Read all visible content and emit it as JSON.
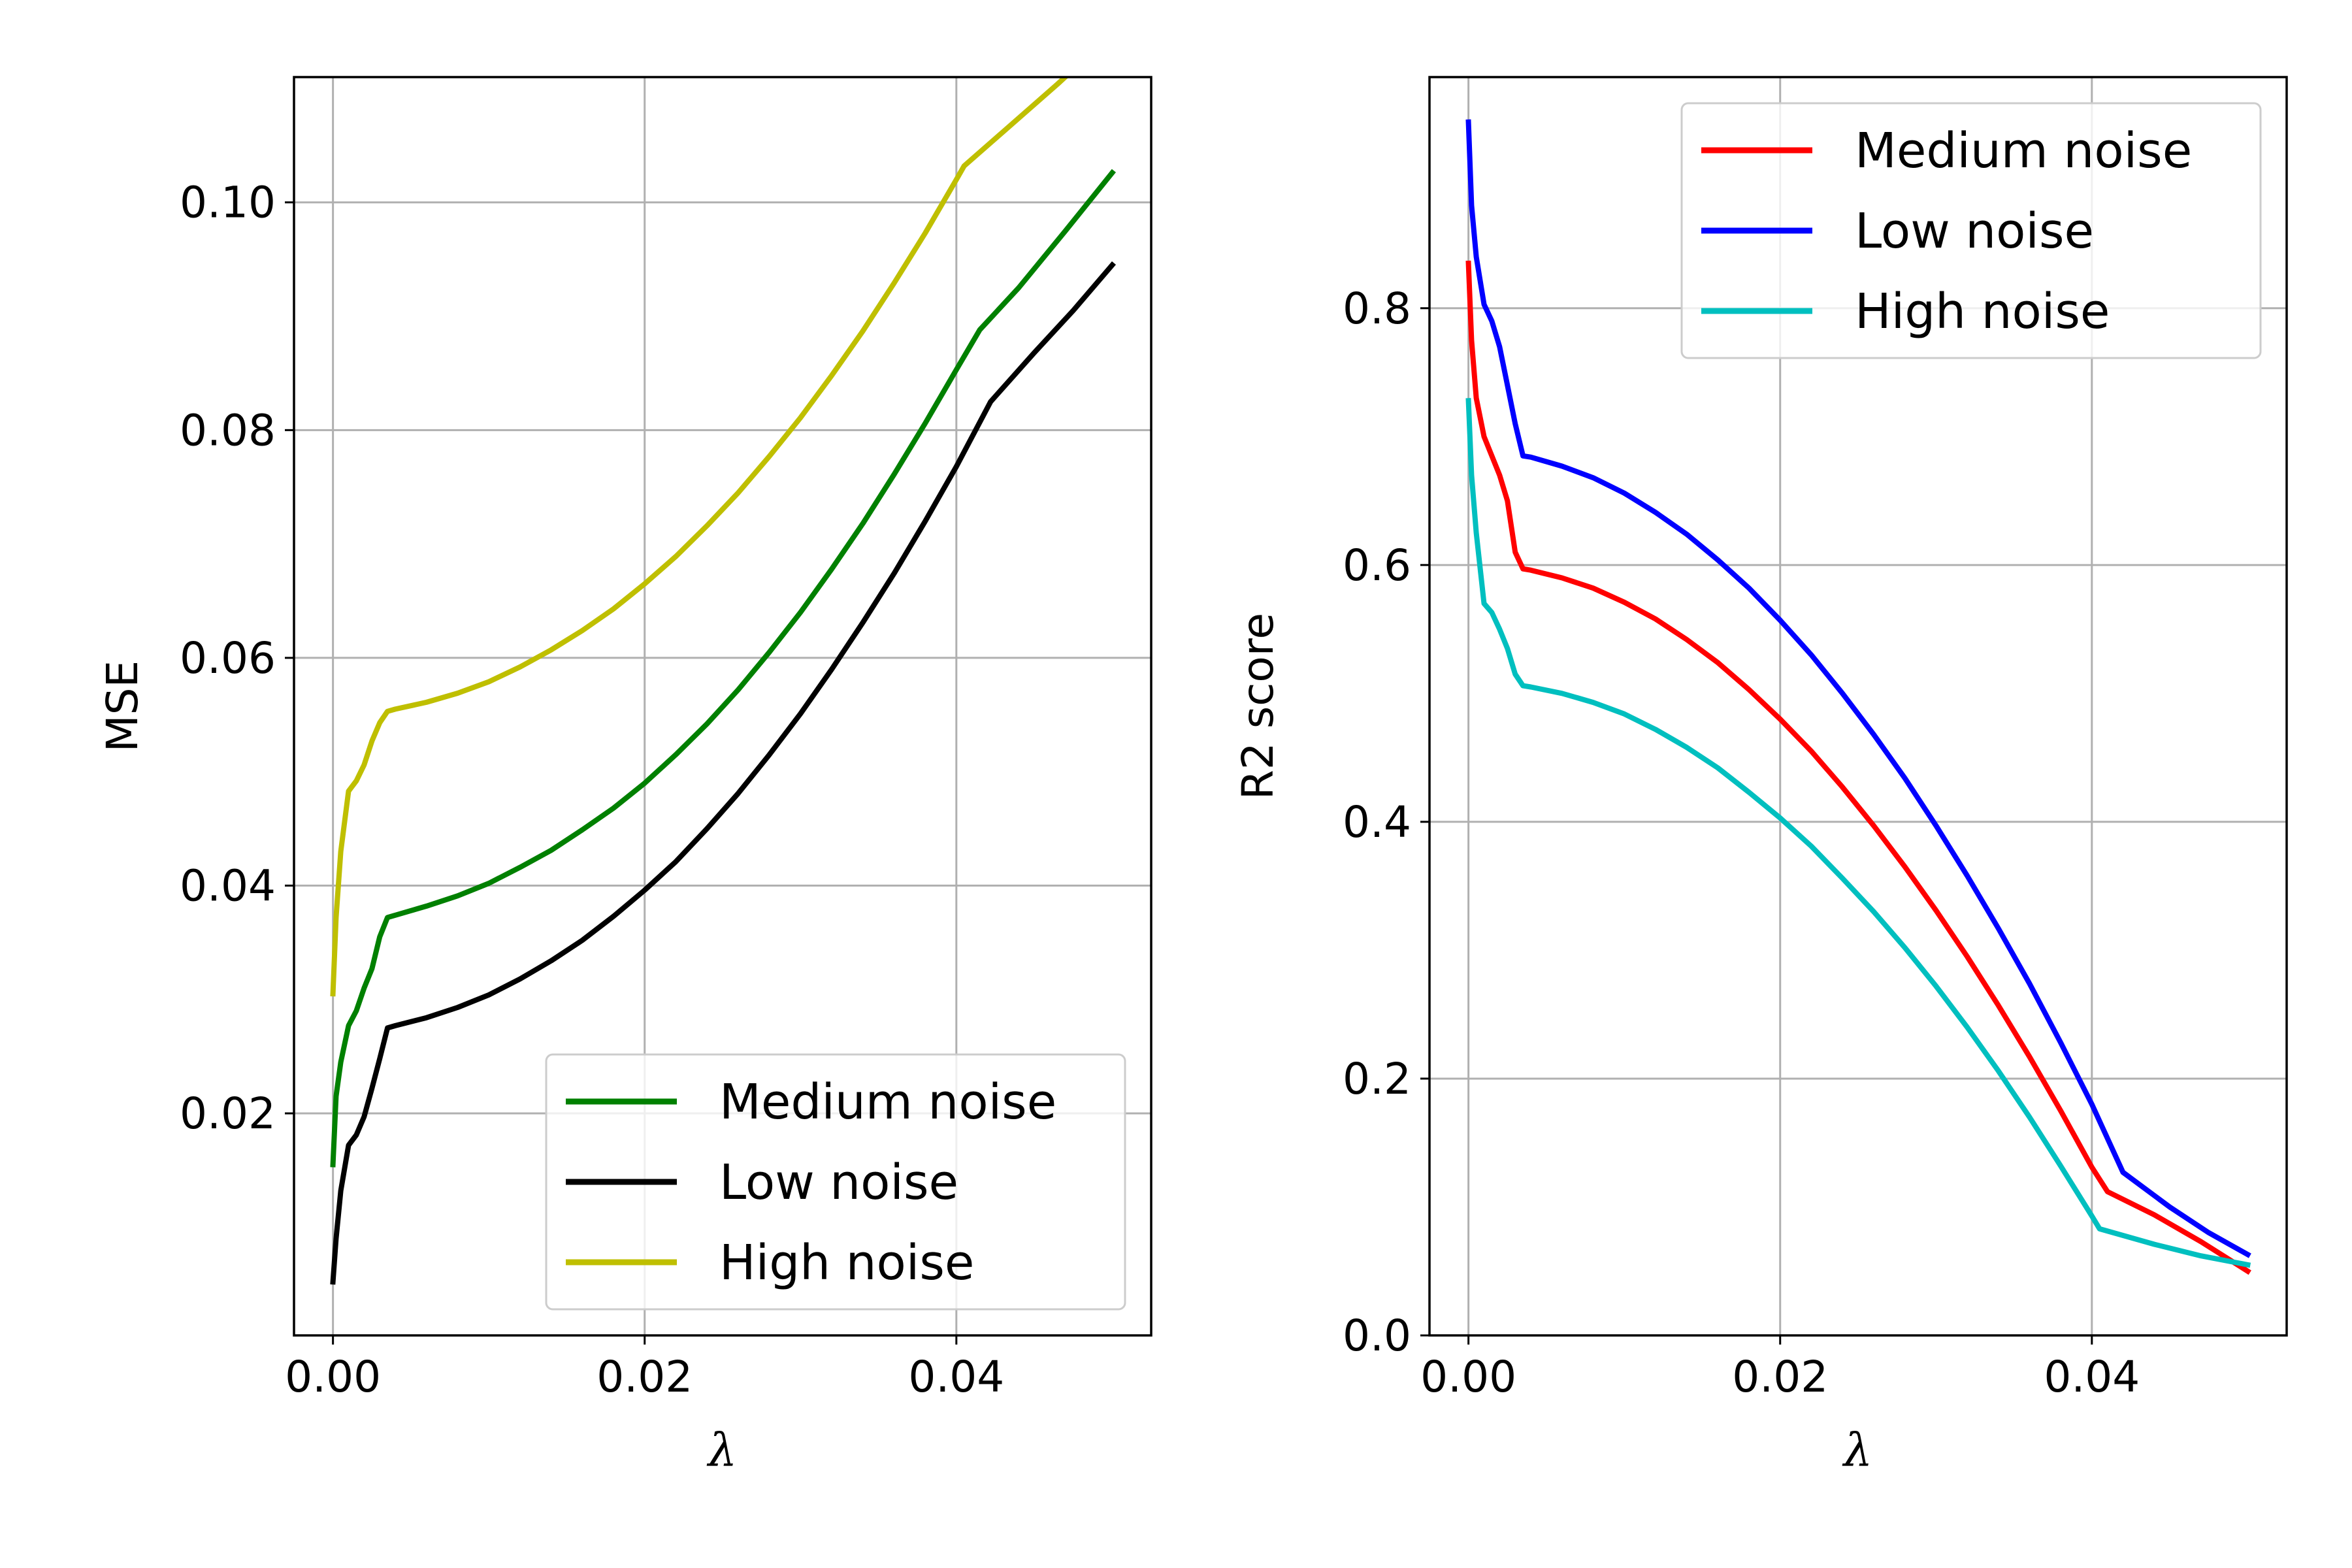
{
  "chart_data": [
    {
      "type": "line",
      "xlabel": "λ",
      "ylabel": "MSE",
      "xlim": [
        -0.0025,
        0.0525
      ],
      "ylim": [
        0.0005,
        0.111
      ],
      "xticks": [
        0.0,
        0.02,
        0.04
      ],
      "xtick_labels": [
        "0.00",
        "0.02",
        "0.04"
      ],
      "yticks": [
        0.02,
        0.04,
        0.06,
        0.08,
        0.1
      ],
      "ytick_labels": [
        "0.02",
        "0.04",
        "0.06",
        "0.08",
        "0.10"
      ],
      "grid": true,
      "legend_position": "lower-right",
      "series": [
        {
          "name": "Medium noise",
          "color": "#008000",
          "x": [
            0,
            0.0002,
            0.0005,
            0.001,
            0.0015,
            0.002,
            0.0025,
            0.003,
            0.0035,
            0.004,
            0.006,
            0.008,
            0.01,
            0.012,
            0.014,
            0.016,
            0.018,
            0.02,
            0.022,
            0.024,
            0.026,
            0.028,
            0.03,
            0.032,
            0.034,
            0.036,
            0.038,
            0.04,
            0.0415,
            0.044,
            0.047,
            0.05
          ],
          "y": [
            0.0155,
            0.0215,
            0.0245,
            0.0277,
            0.029,
            0.031,
            0.0327,
            0.0355,
            0.0372,
            0.0374,
            0.0382,
            0.0391,
            0.0402,
            0.0416,
            0.0431,
            0.0449,
            0.0468,
            0.049,
            0.0515,
            0.0542,
            0.0572,
            0.0605,
            0.064,
            0.0678,
            0.0718,
            0.0761,
            0.0806,
            0.0853,
            0.0888,
            0.0925,
            0.0975,
            0.1026
          ]
        },
        {
          "name": "Low noise",
          "color": "#000000",
          "x": [
            0,
            0.0002,
            0.0005,
            0.001,
            0.0015,
            0.002,
            0.0025,
            0.003,
            0.0035,
            0.004,
            0.006,
            0.008,
            0.01,
            0.012,
            0.014,
            0.016,
            0.018,
            0.02,
            0.022,
            0.024,
            0.026,
            0.028,
            0.03,
            0.032,
            0.034,
            0.036,
            0.038,
            0.04,
            0.0422,
            0.045,
            0.0475,
            0.05
          ],
          "y": [
            0.0052,
            0.009,
            0.0132,
            0.0172,
            0.0181,
            0.0197,
            0.0222,
            0.0248,
            0.0275,
            0.0277,
            0.0284,
            0.0293,
            0.0304,
            0.0318,
            0.0334,
            0.0352,
            0.0373,
            0.0396,
            0.0421,
            0.045,
            0.0481,
            0.0515,
            0.0551,
            0.059,
            0.0631,
            0.0674,
            0.072,
            0.0768,
            0.0825,
            0.0868,
            0.0905,
            0.0945
          ]
        },
        {
          "name": "High noise",
          "color": "#bfbf00",
          "x": [
            0,
            0.0002,
            0.0005,
            0.001,
            0.0015,
            0.002,
            0.0025,
            0.003,
            0.0035,
            0.004,
            0.006,
            0.008,
            0.01,
            0.012,
            0.014,
            0.016,
            0.018,
            0.02,
            0.022,
            0.024,
            0.026,
            0.028,
            0.03,
            0.032,
            0.034,
            0.036,
            0.038,
            0.04,
            0.0405,
            0.043,
            0.0465,
            0.05
          ],
          "y": [
            0.0305,
            0.0372,
            0.043,
            0.0483,
            0.0492,
            0.0506,
            0.0527,
            0.0543,
            0.0553,
            0.0555,
            0.0561,
            0.0569,
            0.0579,
            0.0592,
            0.0607,
            0.0624,
            0.0643,
            0.0665,
            0.0689,
            0.0716,
            0.0745,
            0.0777,
            0.0811,
            0.0848,
            0.0887,
            0.0929,
            0.0973,
            0.102,
            0.1032,
            0.1062,
            0.1104,
            0.1148
          ]
        }
      ]
    },
    {
      "type": "line",
      "xlabel": "λ",
      "ylabel": "R2 score",
      "xlim": [
        -0.0025,
        0.0525
      ],
      "ylim": [
        0.0,
        0.98
      ],
      "xticks": [
        0.0,
        0.02,
        0.04
      ],
      "xtick_labels": [
        "0.00",
        "0.02",
        "0.04"
      ],
      "yticks": [
        0.0,
        0.2,
        0.4,
        0.6,
        0.8
      ],
      "ytick_labels": [
        "0.0",
        "0.2",
        "0.4",
        "0.6",
        "0.8"
      ],
      "grid": true,
      "legend_position": "upper-right",
      "series": [
        {
          "name": "Medium noise",
          "color": "#ff0000",
          "x": [
            0,
            0.0002,
            0.0005,
            0.001,
            0.0015,
            0.002,
            0.0025,
            0.003,
            0.0035,
            0.004,
            0.006,
            0.008,
            0.01,
            0.012,
            0.014,
            0.016,
            0.018,
            0.02,
            0.022,
            0.024,
            0.026,
            0.028,
            0.03,
            0.032,
            0.034,
            0.036,
            0.038,
            0.04,
            0.041,
            0.044,
            0.047,
            0.05
          ],
          "y": [
            0.835,
            0.775,
            0.73,
            0.7,
            0.685,
            0.67,
            0.65,
            0.61,
            0.597,
            0.596,
            0.59,
            0.582,
            0.571,
            0.558,
            0.542,
            0.524,
            0.503,
            0.48,
            0.455,
            0.427,
            0.397,
            0.365,
            0.331,
            0.295,
            0.257,
            0.217,
            0.175,
            0.131,
            0.112,
            0.094,
            0.073,
            0.05
          ]
        },
        {
          "name": "Low noise",
          "color": "#0000ff",
          "x": [
            0,
            0.0002,
            0.0005,
            0.001,
            0.0015,
            0.002,
            0.0025,
            0.003,
            0.0035,
            0.004,
            0.006,
            0.008,
            0.01,
            0.012,
            0.014,
            0.016,
            0.018,
            0.02,
            0.022,
            0.024,
            0.026,
            0.028,
            0.03,
            0.032,
            0.034,
            0.036,
            0.038,
            0.04,
            0.042,
            0.045,
            0.0475,
            0.05
          ],
          "y": [
            0.945,
            0.88,
            0.84,
            0.803,
            0.79,
            0.77,
            0.74,
            0.71,
            0.685,
            0.684,
            0.677,
            0.668,
            0.656,
            0.641,
            0.624,
            0.604,
            0.582,
            0.557,
            0.53,
            0.5,
            0.468,
            0.434,
            0.397,
            0.358,
            0.317,
            0.274,
            0.228,
            0.18,
            0.127,
            0.1,
            0.08,
            0.063
          ]
        },
        {
          "name": "High noise",
          "color": "#00bfbf",
          "x": [
            0,
            0.0002,
            0.0005,
            0.001,
            0.0015,
            0.002,
            0.0025,
            0.003,
            0.0035,
            0.004,
            0.006,
            0.008,
            0.01,
            0.012,
            0.014,
            0.016,
            0.018,
            0.02,
            0.022,
            0.024,
            0.026,
            0.028,
            0.03,
            0.032,
            0.034,
            0.036,
            0.038,
            0.04,
            0.0405,
            0.044,
            0.047,
            0.05
          ],
          "y": [
            0.728,
            0.67,
            0.625,
            0.57,
            0.563,
            0.55,
            0.535,
            0.515,
            0.506,
            0.505,
            0.5,
            0.493,
            0.484,
            0.472,
            0.458,
            0.442,
            0.423,
            0.403,
            0.381,
            0.356,
            0.33,
            0.302,
            0.272,
            0.24,
            0.206,
            0.17,
            0.132,
            0.093,
            0.083,
            0.071,
            0.062,
            0.055
          ]
        }
      ]
    }
  ]
}
